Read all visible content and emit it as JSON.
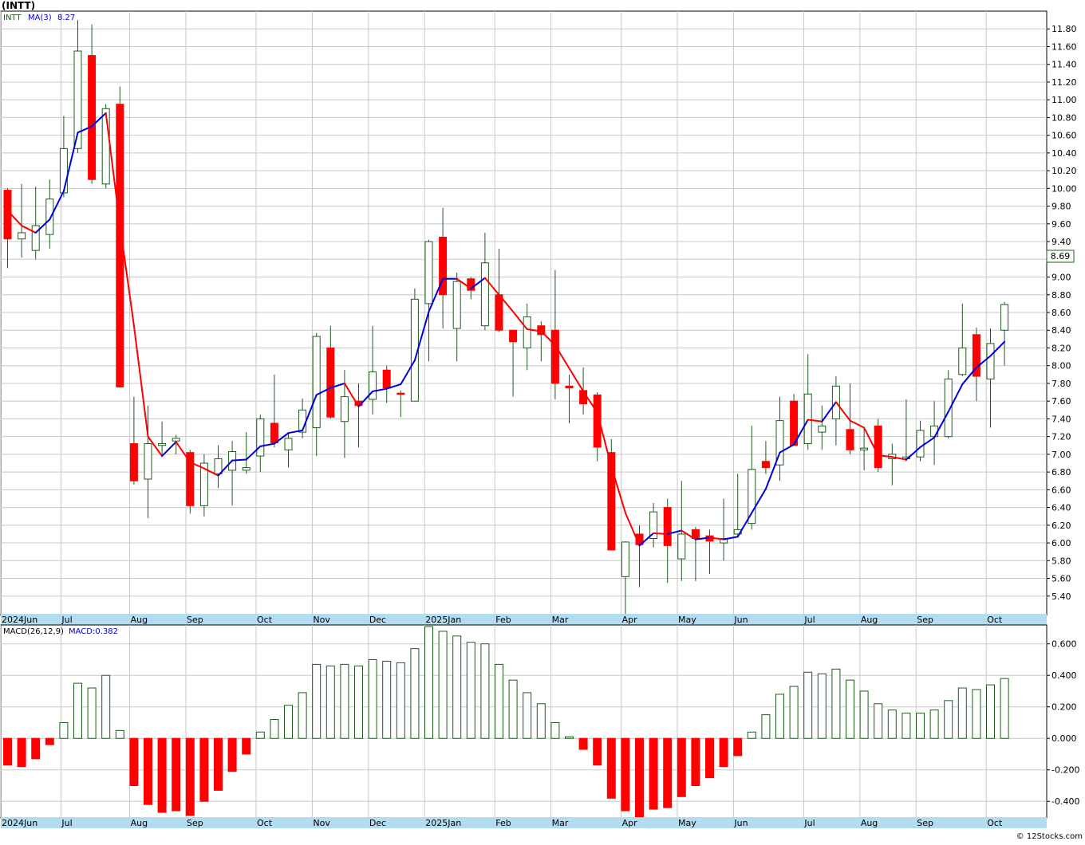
{
  "title": "(INTT)",
  "price_legend": {
    "symbol": "INTT",
    "ma_label": "MA(3)",
    "ma_value": "8.27"
  },
  "macd_legend": {
    "label": "MACD(26,12,9)",
    "value": "MACD:0.382"
  },
  "last_price_label": "8.69",
  "footer": "© 12Stocks.com",
  "colors": {
    "up": "#1e5c1e",
    "down": "#ff0000",
    "ma_up": "#0000dd",
    "ma_down": "#ff0000",
    "grid": "#c8c8c8",
    "axis_band": "#b4dcf0"
  },
  "chart_data": [
    {
      "type": "candlestick",
      "name": "price",
      "ylim": [
        5.2,
        12.0
      ],
      "yticks": [
        "5.40",
        "5.60",
        "5.80",
        "6.00",
        "6.20",
        "6.40",
        "6.60",
        "6.80",
        "7.00",
        "7.20",
        "7.40",
        "7.60",
        "7.80",
        "8.00",
        "8.20",
        "8.40",
        "8.60",
        "8.80",
        "9.00",
        "9.20",
        "9.40",
        "9.60",
        "9.80",
        "10.00",
        "10.20",
        "10.40",
        "10.60",
        "10.80",
        "11.00",
        "11.20",
        "11.40",
        "11.60",
        "11.80"
      ],
      "month_labels": [
        {
          "label": "2024Jun",
          "week": 0
        },
        {
          "label": "Jul",
          "week": 4.3
        },
        {
          "label": "Aug",
          "week": 9.2
        },
        {
          "label": "Sep",
          "week": 13.2
        },
        {
          "label": "Oct",
          "week": 18.2
        },
        {
          "label": "Nov",
          "week": 22.2
        },
        {
          "label": "Dec",
          "week": 26.2
        },
        {
          "label": "2025Jan",
          "week": 30.2
        },
        {
          "label": "Feb",
          "week": 35.2
        },
        {
          "label": "Mar",
          "week": 39.2
        },
        {
          "label": "Apr",
          "week": 44.2
        },
        {
          "label": "May",
          "week": 48.2
        },
        {
          "label": "Jun",
          "week": 52.2
        },
        {
          "label": "Jul",
          "week": 57.2
        },
        {
          "label": "Aug",
          "week": 61.2
        },
        {
          "label": "Sep",
          "week": 65.2
        },
        {
          "label": "Oct",
          "week": 70.2
        }
      ],
      "candles": [
        [
          9.98,
          10.0,
          9.1,
          9.43
        ],
        [
          9.43,
          10.05,
          9.22,
          9.5
        ],
        [
          9.3,
          10.02,
          9.2,
          9.58
        ],
        [
          9.48,
          10.1,
          9.32,
          9.88
        ],
        [
          9.95,
          10.82,
          9.9,
          10.45
        ],
        [
          10.45,
          11.9,
          10.4,
          11.55
        ],
        [
          11.5,
          11.85,
          10.05,
          10.1
        ],
        [
          10.05,
          10.95,
          10.0,
          10.9
        ],
        [
          10.95,
          11.15,
          7.75,
          7.76
        ],
        [
          7.12,
          7.65,
          6.66,
          6.7
        ],
        [
          6.72,
          7.55,
          6.28,
          7.12
        ],
        [
          7.1,
          7.37,
          6.97,
          7.12
        ],
        [
          7.15,
          7.22,
          7.0,
          7.18
        ],
        [
          7.02,
          7.05,
          6.33,
          6.42
        ],
        [
          6.42,
          7.0,
          6.3,
          6.9
        ],
        [
          6.78,
          7.1,
          6.62,
          6.95
        ],
        [
          6.82,
          7.15,
          6.42,
          7.03
        ],
        [
          6.82,
          7.25,
          6.78,
          6.85
        ],
        [
          6.98,
          7.45,
          6.8,
          7.4
        ],
        [
          7.35,
          7.9,
          7.08,
          7.13
        ],
        [
          7.05,
          7.25,
          6.85,
          7.18
        ],
        [
          7.25,
          7.63,
          7.18,
          7.5
        ],
        [
          7.3,
          8.37,
          6.98,
          8.33
        ],
        [
          8.2,
          8.45,
          7.4,
          7.42
        ],
        [
          7.37,
          7.95,
          6.96,
          7.65
        ],
        [
          7.6,
          7.8,
          7.08,
          7.55
        ],
        [
          7.62,
          8.45,
          7.45,
          7.93
        ],
        [
          7.95,
          8.0,
          7.58,
          7.75
        ],
        [
          7.69,
          7.72,
          7.42,
          7.68
        ],
        [
          7.6,
          8.87,
          7.6,
          8.75
        ],
        [
          8.7,
          9.42,
          8.05,
          9.4
        ],
        [
          9.45,
          9.78,
          8.42,
          8.8
        ],
        [
          8.42,
          9.05,
          8.05,
          8.95
        ],
        [
          8.98,
          9.0,
          8.75,
          8.85
        ],
        [
          8.45,
          9.5,
          8.4,
          9.16
        ],
        [
          8.8,
          9.32,
          8.38,
          8.4
        ],
        [
          8.4,
          8.4,
          7.65,
          8.27
        ],
        [
          8.2,
          8.7,
          7.95,
          8.55
        ],
        [
          8.45,
          8.5,
          8.05,
          8.35
        ],
        [
          8.4,
          9.08,
          7.62,
          7.8
        ],
        [
          7.77,
          7.9,
          7.35,
          7.75
        ],
        [
          7.72,
          7.98,
          7.45,
          7.57
        ],
        [
          7.67,
          7.7,
          6.92,
          7.08
        ],
        [
          7.02,
          7.17,
          5.92,
          5.92
        ],
        [
          5.62,
          6.02,
          5.12,
          6.01
        ],
        [
          6.1,
          6.2,
          5.5,
          5.98
        ],
        [
          6.05,
          6.45,
          5.95,
          6.35
        ],
        [
          6.4,
          6.5,
          5.55,
          5.97
        ],
        [
          5.82,
          6.7,
          5.57,
          6.1
        ],
        [
          6.15,
          6.18,
          5.57,
          6.05
        ],
        [
          6.08,
          6.15,
          5.65,
          6.02
        ],
        [
          6.0,
          6.5,
          5.8,
          6.05
        ],
        [
          6.1,
          6.78,
          6.08,
          6.15
        ],
        [
          6.22,
          7.32,
          6.15,
          6.83
        ],
        [
          6.92,
          7.15,
          6.78,
          6.85
        ],
        [
          6.88,
          7.65,
          6.7,
          7.38
        ],
        [
          7.6,
          7.68,
          7.1,
          7.1
        ],
        [
          7.12,
          8.13,
          7.05,
          7.68
        ],
        [
          7.25,
          7.55,
          7.05,
          7.32
        ],
        [
          7.4,
          7.88,
          7.1,
          7.77
        ],
        [
          7.28,
          7.8,
          7.0,
          7.05
        ],
        [
          7.05,
          7.3,
          6.82,
          7.07
        ],
        [
          7.32,
          7.4,
          6.8,
          6.85
        ],
        [
          6.95,
          7.12,
          6.65,
          7.0
        ],
        [
          6.95,
          7.62,
          6.92,
          6.97
        ],
        [
          6.97,
          7.38,
          6.92,
          7.27
        ],
        [
          7.2,
          7.6,
          6.88,
          7.32
        ],
        [
          7.2,
          7.95,
          7.18,
          7.85
        ],
        [
          7.9,
          8.7,
          7.88,
          8.2
        ],
        [
          8.35,
          8.43,
          7.6,
          7.88
        ],
        [
          7.85,
          8.42,
          7.3,
          8.25
        ],
        [
          8.4,
          8.72,
          8.0,
          8.69
        ]
      ],
      "ma3": [
        9.75,
        9.58,
        9.5,
        9.65,
        9.97,
        10.63,
        10.7,
        10.85,
        9.59,
        8.45,
        7.2,
        6.98,
        7.14,
        6.91,
        6.84,
        6.76,
        6.93,
        6.94,
        7.09,
        7.12,
        7.24,
        7.27,
        7.67,
        7.75,
        7.8,
        7.54,
        7.71,
        7.74,
        7.79,
        8.06,
        8.61,
        8.98,
        8.98,
        8.87,
        8.99,
        8.8,
        8.61,
        8.41,
        8.39,
        8.23,
        7.97,
        7.71,
        7.47,
        6.86,
        6.34,
        5.97,
        6.11,
        6.1,
        6.14,
        6.04,
        6.06,
        6.04,
        6.07,
        6.34,
        6.61,
        7.02,
        7.11,
        7.39,
        7.37,
        7.59,
        7.38,
        7.3,
        6.99,
        6.97,
        6.94,
        7.08,
        7.19,
        7.48,
        7.79,
        7.98,
        8.11,
        8.27
      ]
    },
    {
      "type": "bar",
      "name": "macd",
      "ylim": [
        -0.5,
        0.72
      ],
      "yticks": [
        "-0.400",
        "-0.200",
        "0.000",
        "0.200",
        "0.400",
        "0.600"
      ],
      "values": [
        -0.17,
        -0.18,
        -0.13,
        -0.04,
        0.1,
        0.35,
        0.32,
        0.4,
        0.05,
        -0.3,
        -0.42,
        -0.47,
        -0.46,
        -0.49,
        -0.4,
        -0.33,
        -0.21,
        -0.1,
        0.04,
        0.12,
        0.21,
        0.29,
        0.47,
        0.46,
        0.47,
        0.46,
        0.5,
        0.49,
        0.48,
        0.57,
        0.71,
        0.68,
        0.65,
        0.61,
        0.6,
        0.47,
        0.37,
        0.29,
        0.22,
        0.1,
        0.01,
        -0.07,
        -0.17,
        -0.38,
        -0.46,
        -0.52,
        -0.45,
        -0.44,
        -0.37,
        -0.3,
        -0.25,
        -0.18,
        -0.11,
        0.04,
        0.15,
        0.28,
        0.33,
        0.42,
        0.41,
        0.44,
        0.37,
        0.3,
        0.22,
        0.18,
        0.16,
        0.16,
        0.18,
        0.24,
        0.32,
        0.31,
        0.34,
        0.38
      ]
    }
  ]
}
